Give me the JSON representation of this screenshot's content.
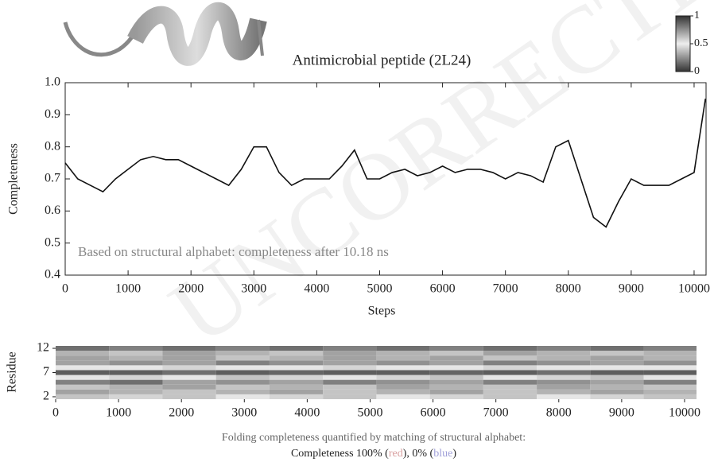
{
  "chart_data": [
    {
      "type": "line",
      "title": "Antimicrobial peptide (2L24)",
      "xlabel": "Steps",
      "ylabel": "Completeness",
      "annotation": "Based on structural alphabet: completeness after 10.18 ns",
      "x": [
        0,
        200,
        400,
        600,
        800,
        1000,
        1200,
        1400,
        1600,
        1800,
        2000,
        2200,
        2400,
        2600,
        2800,
        3000,
        3200,
        3400,
        3600,
        3800,
        4000,
        4200,
        4400,
        4600,
        4800,
        5000,
        5200,
        5400,
        5600,
        5800,
        6000,
        6200,
        6400,
        6600,
        6800,
        7000,
        7200,
        7400,
        7600,
        7800,
        8000,
        8200,
        8400,
        8600,
        8800,
        9000,
        9200,
        9400,
        9600,
        9800,
        10000,
        10180
      ],
      "series": [
        {
          "name": "Completeness",
          "color": "#111",
          "values": [
            0.75,
            0.7,
            0.68,
            0.66,
            0.7,
            0.73,
            0.76,
            0.77,
            0.76,
            0.76,
            0.74,
            0.72,
            0.7,
            0.68,
            0.73,
            0.8,
            0.8,
            0.72,
            0.68,
            0.7,
            0.7,
            0.7,
            0.74,
            0.79,
            0.7,
            0.7,
            0.72,
            0.73,
            0.71,
            0.72,
            0.74,
            0.72,
            0.73,
            0.73,
            0.72,
            0.7,
            0.72,
            0.71,
            0.69,
            0.8,
            0.82,
            0.7,
            0.58,
            0.55,
            0.63,
            0.7,
            0.68,
            0.68,
            0.68,
            0.7,
            0.72,
            0.95
          ]
        }
      ],
      "xlim": [
        0,
        10190
      ],
      "ylim": [
        0.4,
        1.0
      ],
      "xticks": [
        0,
        1000,
        2000,
        3000,
        4000,
        5000,
        6000,
        7000,
        8000,
        9000,
        10000
      ],
      "yticks": [
        {
          "value": 0.4,
          "label": "0.4"
        },
        0.5,
        0.6,
        0.7,
        0.8,
        0.9,
        {
          "value": 1.0,
          "label": "1.0"
        }
      ],
      "colorbar": {
        "lim": [
          0,
          1
        ],
        "ticks": [
          1,
          0.5,
          0
        ]
      }
    },
    {
      "type": "heatmap",
      "ylabel": "Residue",
      "x_bins": [
        0,
        850,
        1700,
        2550,
        3400,
        4250,
        5100,
        5950,
        6800,
        7650,
        8500,
        9350,
        10190
      ],
      "y": [
        2,
        3,
        4,
        5,
        6,
        7,
        8,
        9,
        10,
        11,
        12
      ],
      "z": [
        [
          0.6,
          0.55,
          0.6,
          0.5,
          0.55,
          0.6,
          0.5,
          0.55,
          0.6,
          0.5,
          0.55,
          0.6
        ],
        [
          0.3,
          0.35,
          0.4,
          0.35,
          0.3,
          0.4,
          0.35,
          0.3,
          0.4,
          0.35,
          0.3,
          0.35
        ],
        [
          0.6,
          0.65,
          0.7,
          0.6,
          0.65,
          0.6,
          0.7,
          0.65,
          0.6,
          0.7,
          0.65,
          0.6
        ],
        [
          0.2,
          0.85,
          0.3,
          0.25,
          0.3,
          0.2,
          0.25,
          0.3,
          0.2,
          0.25,
          0.3,
          0.2
        ],
        [
          0.5,
          0.55,
          0.5,
          0.6,
          0.55,
          0.5,
          0.55,
          0.6,
          0.5,
          0.55,
          0.6,
          0.5
        ],
        [
          0.1,
          0.1,
          0.15,
          0.1,
          0.12,
          0.1,
          0.1,
          0.12,
          0.1,
          0.15,
          0.1,
          0.1
        ],
        [
          0.5,
          0.5,
          0.55,
          0.5,
          0.5,
          0.55,
          0.5,
          0.5,
          0.55,
          0.5,
          0.5,
          0.5
        ],
        [
          0.7,
          0.75,
          0.7,
          0.8,
          0.75,
          0.7,
          0.75,
          0.7,
          0.8,
          0.75,
          0.7,
          0.75
        ],
        [
          0.3,
          0.35,
          0.3,
          0.4,
          0.35,
          0.3,
          0.35,
          0.3,
          0.4,
          0.35,
          0.3,
          0.35
        ],
        [
          0.65,
          0.6,
          0.7,
          0.65,
          0.6,
          0.7,
          0.65,
          0.6,
          0.7,
          0.65,
          0.6,
          0.65
        ],
        [
          0.85,
          0.8,
          0.85,
          0.8,
          0.85,
          0.8,
          0.85,
          0.8,
          0.85,
          0.8,
          0.85,
          0.8
        ]
      ],
      "xlim": [
        0,
        10190
      ],
      "ylim": [
        1.5,
        12.5
      ],
      "xticks": [
        0,
        1000,
        2000,
        3000,
        4000,
        5000,
        6000,
        7000,
        8000,
        9000,
        10000
      ],
      "yticks": [
        2,
        7,
        12
      ],
      "caption": [
        "Folding completeness quantified by matching of structural alphabet:",
        "Completeness 100% (",
        "red",
        "), 0% (",
        "blue",
        ")"
      ],
      "caption_colors": [
        "#d9a0a0",
        "#a0a0d9"
      ]
    }
  ],
  "watermark": "UNCORRECTED"
}
